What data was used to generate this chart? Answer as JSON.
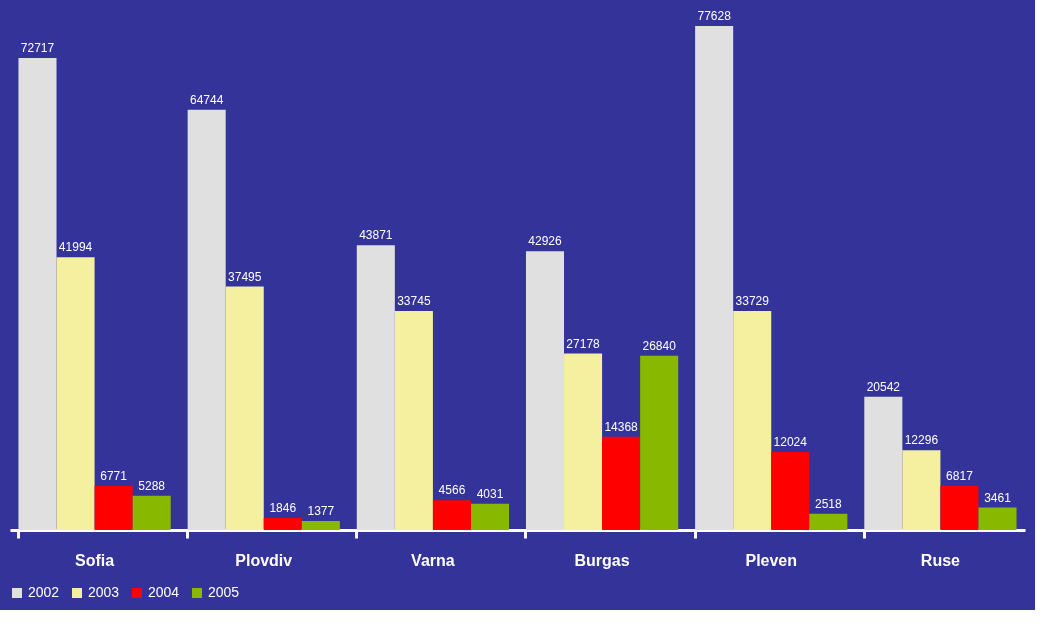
{
  "chart_data": {
    "type": "bar",
    "categories": [
      "Sofia",
      "Plovdiv",
      "Varna",
      "Burgas",
      "Pleven",
      "Ruse"
    ],
    "series": [
      {
        "name": "2002",
        "color": "#e0e0e0",
        "values": [
          72717,
          64744,
          43871,
          42926,
          77628,
          20542
        ]
      },
      {
        "name": "2003",
        "color": "#f4f0a0",
        "values": [
          41994,
          37495,
          33745,
          27178,
          33729,
          12296
        ]
      },
      {
        "name": "2004",
        "color": "#ff0000",
        "values": [
          6771,
          1846,
          4566,
          14368,
          12024,
          6817
        ]
      },
      {
        "name": "2005",
        "color": "#88b800",
        "values": [
          5288,
          1377,
          4031,
          26840,
          2518,
          3461
        ]
      }
    ],
    "data_labels": true,
    "legend": "bottom",
    "grid": false
  }
}
